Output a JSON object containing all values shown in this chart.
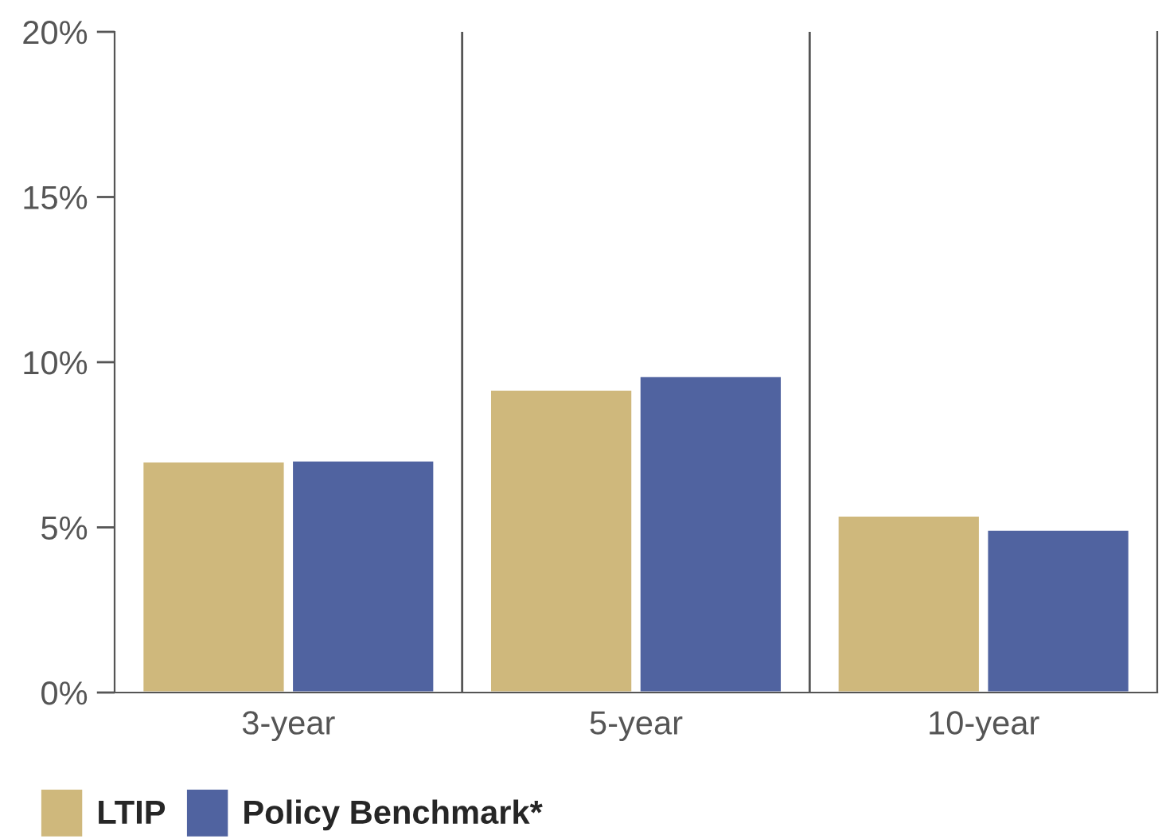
{
  "chart_data": {
    "type": "bar",
    "categories": [
      "3-year",
      "5-year",
      "10-year"
    ],
    "series": [
      {
        "name": "LTIP",
        "color": "#cfb87c",
        "values": [
          7.0,
          9.17,
          5.36
        ]
      },
      {
        "name": "Policy Benchmark*",
        "color": "#5063a0",
        "values": [
          7.03,
          9.58,
          4.93
        ]
      }
    ],
    "ylim": [
      0,
      20
    ],
    "yticks": [
      {
        "value": 0,
        "label": "0%"
      },
      {
        "value": 5,
        "label": "5%"
      },
      {
        "value": 10,
        "label": "10%"
      },
      {
        "value": 15,
        "label": "15%"
      },
      {
        "value": 20,
        "label": "20%"
      }
    ],
    "grid": false,
    "legend": "bottom left"
  }
}
